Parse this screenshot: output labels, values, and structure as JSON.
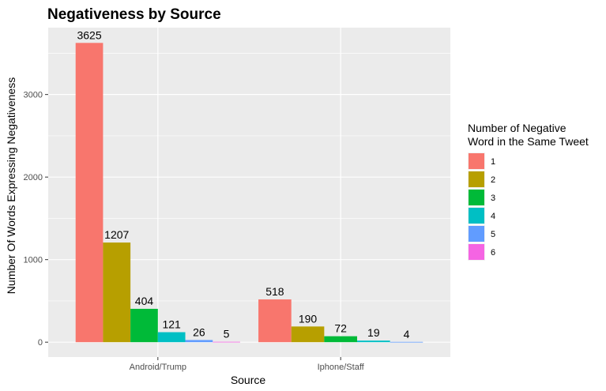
{
  "chart_data": {
    "type": "bar",
    "title": "Negativeness by Source",
    "xlabel": "Source",
    "ylabel": "Number Of Words Expressing Negativeness",
    "categories": [
      "Android/Trump",
      "Iphone/Staff"
    ],
    "series": [
      {
        "name": "1",
        "color": "#F8766D",
        "values": [
          3625,
          518
        ]
      },
      {
        "name": "2",
        "color": "#B79F00",
        "values": [
          1207,
          190
        ]
      },
      {
        "name": "3",
        "color": "#00BA38",
        "values": [
          404,
          72
        ]
      },
      {
        "name": "4",
        "color": "#00BFC4",
        "values": [
          121,
          19
        ]
      },
      {
        "name": "5",
        "color": "#619CFF",
        "values": [
          26,
          4
        ]
      },
      {
        "name": "6",
        "color": "#F564E3",
        "values": [
          5,
          null
        ]
      }
    ],
    "ylim": [
      -180,
      3810
    ],
    "yticks": [
      0,
      1000,
      2000,
      3000
    ],
    "grid": true,
    "legend": {
      "title_line1": "Number of Negative",
      "title_line2": "Word in the Same Tweet",
      "position": "right"
    },
    "background": "#EBEBEB",
    "gridline_color": "#FFFFFF"
  }
}
